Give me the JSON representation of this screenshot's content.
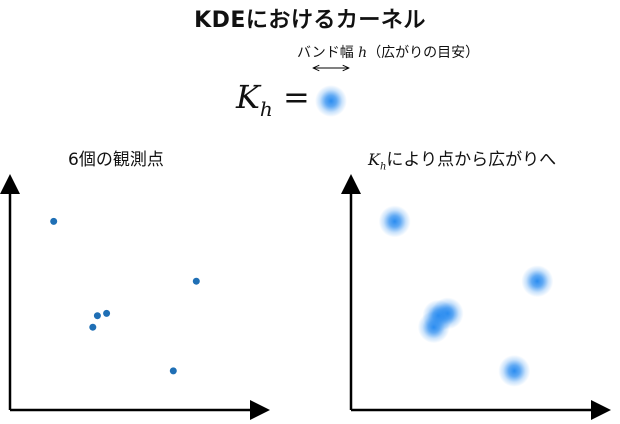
{
  "title": "KDEにおけるカーネル",
  "bandwidth": {
    "label_prefix": "バンド幅 ",
    "symbol": "h",
    "label_suffix": "（広がりの目安）"
  },
  "kernel_equation": {
    "symbol": "K",
    "subscript": "h",
    "equals": " ="
  },
  "left_panel": {
    "title": "6個の観測点"
  },
  "right_panel": {
    "title_symbol": "K",
    "title_subscript": "h",
    "title_text": "により点から広がりへ"
  },
  "colors": {
    "point": "#1f6fb5",
    "blob": "#2a8cf0",
    "axis": "#000000"
  },
  "chart_data": {
    "type": "scatter",
    "points": [
      {
        "x": 0.19,
        "y": 0.82
      },
      {
        "x": 0.81,
        "y": 0.56
      },
      {
        "x": 0.42,
        "y": 0.42
      },
      {
        "x": 0.38,
        "y": 0.41
      },
      {
        "x": 0.36,
        "y": 0.36
      },
      {
        "x": 0.71,
        "y": 0.17
      }
    ],
    "xlim": [
      0,
      1
    ],
    "ylim": [
      0,
      1
    ]
  }
}
